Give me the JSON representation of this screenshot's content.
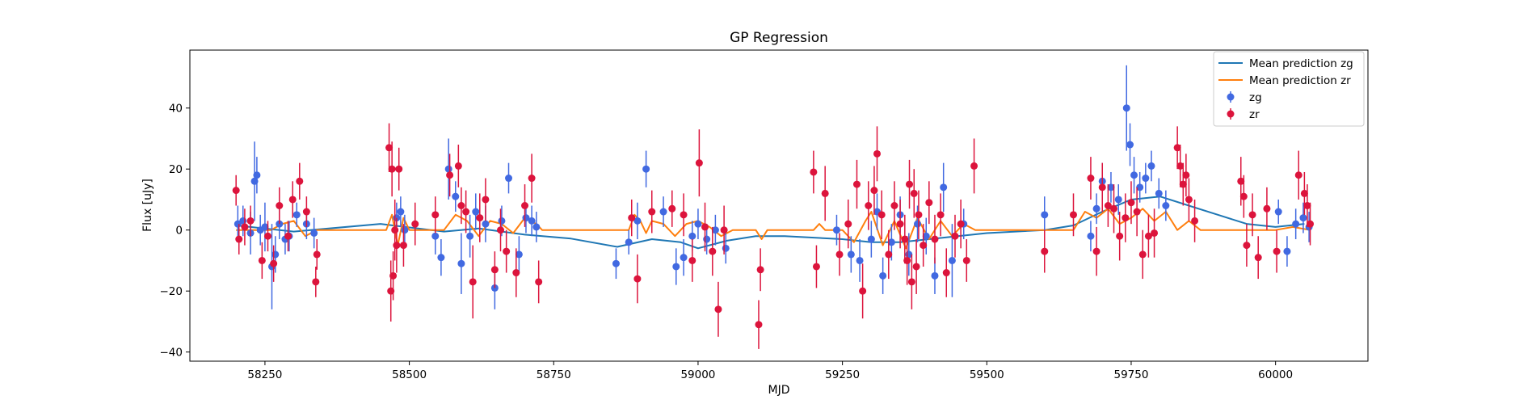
{
  "chart_data": {
    "type": "scatter",
    "title": "GP Regression",
    "xlabel": "MJD",
    "ylabel": "Flux [uJy]",
    "xlim": [
      58120,
      60160
    ],
    "ylim": [
      -43,
      59
    ],
    "xticks": [
      58250,
      58500,
      58750,
      59000,
      59250,
      59500,
      59750,
      60000
    ],
    "yticks": [
      -40,
      -20,
      0,
      20,
      40
    ],
    "grid": false,
    "legend_position": "top-right",
    "lines": [
      {
        "name": "Mean prediction zg",
        "color": "#1f77b4",
        "x": [
          58200,
          58300,
          58450,
          58560,
          58620,
          58700,
          58780,
          58860,
          58920,
          58970,
          59000,
          59050,
          59100,
          59150,
          59250,
          59300,
          59350,
          59400,
          59450,
          59500,
          59550,
          59600,
          59650,
          59700,
          59750,
          59800,
          59850,
          59900,
          59950,
          60000,
          60050
        ],
        "y": [
          1.5,
          -0.5,
          2,
          -0.5,
          0.5,
          -1.5,
          -2.8,
          -5.5,
          -3,
          -4,
          -6,
          -3.5,
          -2,
          -2,
          -3,
          -4,
          -4,
          -3,
          -2,
          -1,
          -0.5,
          0,
          1.5,
          6,
          10,
          11,
          8,
          5,
          2,
          1,
          2
        ]
      },
      {
        "name": "Mean prediction zr",
        "color": "#ff7f0e",
        "x": [
          58200,
          58260,
          58280,
          58300,
          58320,
          58340,
          58460,
          58470,
          58480,
          58490,
          58500,
          58560,
          58580,
          58600,
          58620,
          58640,
          58660,
          58680,
          58700,
          58720,
          58730,
          58880,
          58890,
          58900,
          58910,
          58920,
          58940,
          58960,
          58980,
          59000,
          59020,
          59040,
          59060,
          59100,
          59110,
          59120,
          59200,
          59210,
          59220,
          59250,
          59270,
          59290,
          59300,
          59320,
          59340,
          59360,
          59380,
          59400,
          59420,
          59440,
          59460,
          59480,
          59500,
          59650,
          59670,
          59690,
          59710,
          59730,
          59750,
          59770,
          59790,
          59810,
          59830,
          59850,
          59870,
          59950,
          60000,
          60030,
          60060
        ],
        "y": [
          0,
          0,
          2,
          3,
          -2,
          0,
          0,
          5,
          -5,
          4,
          0,
          0,
          5,
          3,
          -2,
          3,
          2,
          -1,
          4,
          2,
          0,
          0,
          5,
          3,
          -1,
          3,
          2,
          -2,
          2,
          3,
          1,
          -2,
          0,
          0,
          -3,
          0,
          0,
          2,
          0,
          0,
          -4,
          3,
          6,
          -5,
          3,
          -6,
          4,
          -3,
          3,
          -2,
          2,
          0,
          0,
          0,
          6,
          4,
          7,
          2,
          4,
          7,
          3,
          6,
          0,
          3,
          0,
          0,
          0,
          1,
          0
        ]
      }
    ],
    "series": [
      {
        "name": "zg",
        "color": "#4169e1",
        "x": [
          58203,
          58212,
          58225,
          58232,
          58236,
          58242,
          58250,
          58262,
          58268,
          58275,
          58285,
          58292,
          58305,
          58322,
          58335,
          58478,
          58485,
          58492,
          58545,
          58555,
          58568,
          58580,
          58590,
          58605,
          58615,
          58632,
          58648,
          58660,
          58672,
          58690,
          58702,
          58712,
          58720,
          58858,
          58880,
          58895,
          58910,
          58940,
          58962,
          58975,
          58990,
          59000,
          59015,
          59030,
          59048,
          59240,
          59265,
          59280,
          59300,
          59310,
          59320,
          59335,
          59350,
          59365,
          59380,
          59395,
          59410,
          59425,
          59440,
          59460,
          59600,
          59680,
          59690,
          59700,
          59715,
          59728,
          59742,
          59748,
          59755,
          59765,
          59775,
          59785,
          59798,
          59810,
          60005,
          60020,
          60035,
          60048,
          60058
        ],
        "y": [
          2,
          3,
          -1,
          16,
          18,
          0,
          1,
          -12,
          -8,
          2,
          -3,
          -2,
          5,
          2,
          -1,
          4,
          6,
          0,
          -2,
          -9,
          20,
          11,
          -11,
          -2,
          6,
          2,
          -19,
          3,
          17,
          -8,
          4,
          3,
          1,
          -11,
          -4,
          3,
          20,
          6,
          -12,
          -9,
          -2,
          2,
          -3,
          0,
          -6,
          0,
          -8,
          -10,
          -3,
          6,
          -15,
          -4,
          5,
          -8,
          2,
          -2,
          -15,
          14,
          -10,
          2,
          5,
          -2,
          7,
          16,
          14,
          10,
          40,
          28,
          18,
          14,
          17,
          21,
          12,
          8,
          6,
          -7,
          2,
          4,
          1
        ],
        "yerr": [
          6,
          5,
          7,
          13,
          6,
          5,
          8,
          14,
          6,
          5,
          5,
          5,
          4,
          5,
          5,
          5,
          5,
          5,
          6,
          6,
          10,
          5,
          10,
          7,
          6,
          6,
          7,
          5,
          5,
          6,
          5,
          5,
          5,
          5,
          4,
          6,
          6,
          5,
          6,
          6,
          5,
          5,
          5,
          5,
          5,
          5,
          6,
          7,
          6,
          6,
          6,
          6,
          6,
          7,
          6,
          6,
          6,
          8,
          12,
          5,
          6,
          5,
          5,
          6,
          5,
          5,
          14,
          7,
          6,
          5,
          5,
          5,
          5,
          5,
          4,
          5,
          5,
          5,
          5
        ]
      },
      {
        "name": "zr",
        "color": "#dc143c",
        "x": [
          58200,
          58205,
          58215,
          58225,
          58245,
          58255,
          58265,
          58275,
          58290,
          58298,
          58310,
          58322,
          58338,
          58340,
          58465,
          58468,
          58470,
          58472,
          58475,
          58478,
          58482,
          58490,
          58510,
          58545,
          58570,
          58585,
          58590,
          58598,
          58610,
          58622,
          58632,
          58648,
          58658,
          58668,
          58685,
          58700,
          58712,
          58724,
          58885,
          58895,
          58920,
          58955,
          58975,
          58990,
          59002,
          59012,
          59025,
          59035,
          59045,
          59105,
          59108,
          59200,
          59205,
          59220,
          59245,
          59260,
          59275,
          59285,
          59295,
          59305,
          59310,
          59318,
          59330,
          59340,
          59350,
          59358,
          59362,
          59366,
          59370,
          59374,
          59378,
          59382,
          59390,
          59400,
          59410,
          59420,
          59430,
          59445,
          59455,
          59465,
          59478,
          59600,
          59650,
          59680,
          59690,
          59700,
          59710,
          59720,
          59730,
          59740,
          59750,
          59760,
          59770,
          59780,
          59790,
          59830,
          59835,
          59840,
          59845,
          59850,
          59860,
          59940,
          59945,
          59950,
          59960,
          59970,
          59985,
          60002,
          60040,
          60050,
          60055,
          60060
        ],
        "y": [
          13,
          -3,
          1,
          3,
          -10,
          -2,
          -11,
          8,
          -2,
          10,
          16,
          6,
          -17,
          -8,
          27,
          -20,
          20,
          -15,
          0,
          -5,
          20,
          -5,
          2,
          5,
          18,
          21,
          8,
          6,
          -17,
          4,
          10,
          -13,
          0,
          -7,
          -14,
          8,
          17,
          -17,
          4,
          -16,
          6,
          7,
          5,
          -10,
          22,
          1,
          -7,
          -26,
          0,
          -31,
          -13,
          19,
          -12,
          12,
          -8,
          2,
          15,
          -20,
          8,
          13,
          25,
          5,
          -8,
          8,
          2,
          -3,
          -10,
          15,
          -17,
          12,
          -12,
          5,
          -5,
          9,
          -3,
          5,
          -14,
          -2,
          2,
          -10,
          21,
          -7,
          5,
          17,
          -7,
          14,
          8,
          7,
          -2,
          4,
          9,
          6,
          -8,
          -2,
          -1,
          27,
          21,
          15,
          18,
          10,
          3,
          16,
          11,
          -5,
          5,
          -9,
          7,
          -7,
          18,
          12,
          8,
          2
        ],
        "yerr": [
          5,
          5,
          6,
          5,
          6,
          5,
          6,
          6,
          5,
          6,
          6,
          5,
          5,
          5,
          8,
          10,
          9,
          8,
          10,
          9,
          7,
          7,
          7,
          6,
          7,
          7,
          6,
          7,
          12,
          8,
          7,
          6,
          7,
          7,
          8,
          7,
          8,
          7,
          6,
          8,
          7,
          6,
          7,
          7,
          11,
          8,
          8,
          9,
          8,
          8,
          7,
          7,
          7,
          9,
          7,
          8,
          8,
          9,
          8,
          8,
          9,
          8,
          8,
          8,
          8,
          8,
          8,
          8,
          9,
          8,
          9,
          8,
          7,
          7,
          8,
          7,
          8,
          7,
          8,
          7,
          9,
          7,
          7,
          7,
          8,
          8,
          7,
          8,
          8,
          8,
          7,
          8,
          8,
          7,
          8,
          7,
          7,
          7,
          7,
          7,
          7,
          8,
          7,
          7,
          7,
          7,
          7,
          7,
          8,
          7,
          7,
          7
        ]
      }
    ]
  }
}
